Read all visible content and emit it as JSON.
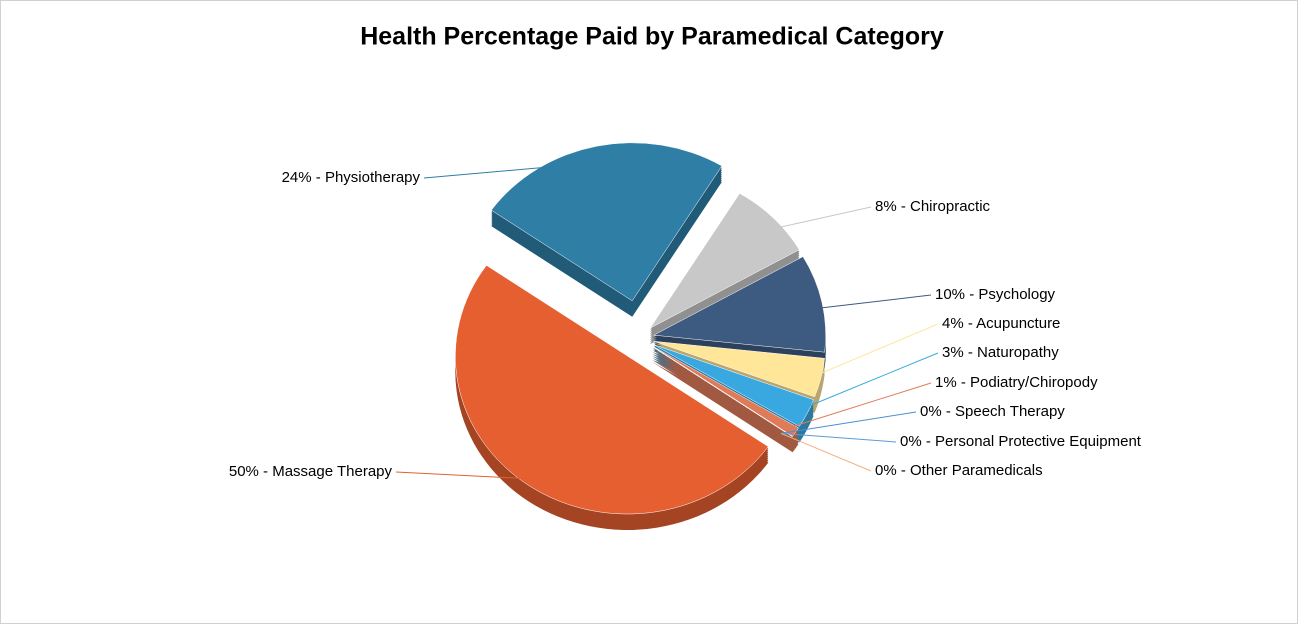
{
  "chart_data": {
    "type": "pie",
    "title": "Health Percentage Paid by Paramedical Category",
    "values": [
      24,
      8,
      10,
      4,
      3,
      1,
      0,
      0,
      0,
      50
    ],
    "value_labels": [
      "24% - Physiotherapy",
      "8% - Chiropractic",
      "10% - Psychology",
      "4% - Acupuncture",
      "3% - Naturopathy",
      "1% - Podiatry/Chiropody",
      "0% - Speech Therapy",
      "0% - Personal Protective Equipment",
      "0% - Other Paramedicals",
      "50% - Massage Therapy"
    ],
    "colors": [
      "#2e7ea6",
      "#c8c8c8",
      "#3d5a80",
      "#ffe699",
      "#3aa8e0",
      "#e07b5a",
      "#4a90d0",
      "#5b9bd5",
      "#f4b183",
      "#e55f30"
    ]
  }
}
